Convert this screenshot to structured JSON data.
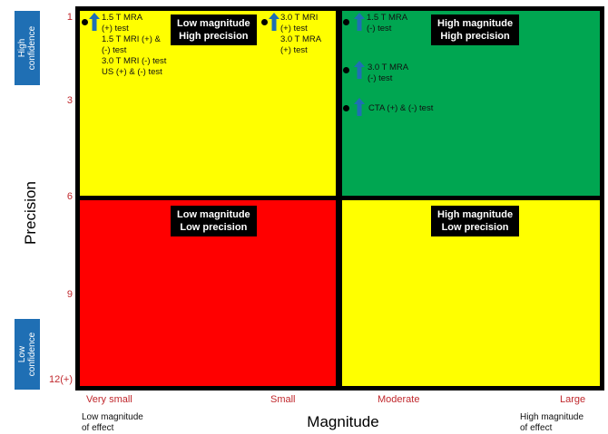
{
  "chart_data": {
    "type": "quadrant",
    "xlabel": "Magnitude",
    "ylabel": "Precision",
    "x_ticks": [
      "Very small",
      "Small",
      "Moderate",
      "Large"
    ],
    "y_ticks": [
      "1",
      "3",
      "6",
      "9",
      "12(+)"
    ],
    "y_top_badge": "High\nconfidence",
    "y_bottom_badge": "Low\nconfidence",
    "x_left_note": "Low magnitude\nof effect",
    "x_right_note": "High magnitude\nof effect",
    "quadrants": [
      {
        "id": "top-left",
        "label": "Low magnitude\nHigh precision",
        "color": "#ffff00"
      },
      {
        "id": "top-right",
        "label": "High magnitude\nHigh precision",
        "color": "#00a651"
      },
      {
        "id": "bottom-left",
        "label": "Low magnitude\nLow precision",
        "color": "#ff0000"
      },
      {
        "id": "bottom-right",
        "label": "High magnitude\nLow precision",
        "color": "#ffff00"
      }
    ],
    "items": [
      {
        "text": "1.5 T MRA\n(+) test\n1.5 T MRI (+) &\n(-) test\n3.0 T MRI (-) test\nUS (+) & (-) test",
        "quadrant": "top-left",
        "precision": 1,
        "arrow": true
      },
      {
        "text": "3.0 T MRI\n(+) test\n3.0 T MRA\n(+) test",
        "quadrant": "top-left",
        "precision": 1,
        "arrow": true
      },
      {
        "text": "1.5 T MRA\n(-) test",
        "quadrant": "top-right",
        "precision": 1,
        "arrow": true
      },
      {
        "text": "3.0 T MRA\n(-) test",
        "quadrant": "top-right",
        "precision": 2,
        "arrow": true
      },
      {
        "text": "CTA (+) & (-) test",
        "quadrant": "top-right",
        "precision": 3,
        "arrow": true
      }
    ],
    "colors": {
      "arrow": "#1f6fb4",
      "tick": "#c0282d",
      "badge": "#1f6fb4"
    }
  }
}
